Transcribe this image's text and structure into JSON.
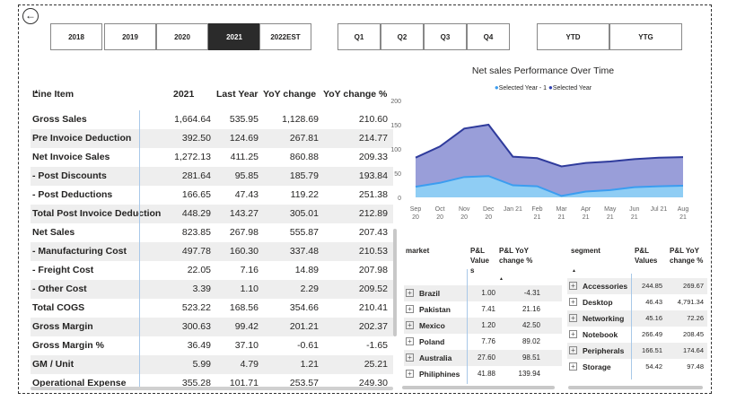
{
  "back_icon": "arrow-left-circle-icon",
  "slicers": {
    "years": [
      "2018",
      "2019",
      "2020",
      "2021",
      "2022EST"
    ],
    "selected_year": "2021",
    "quarters": [
      "Q1",
      "Q2",
      "Q3",
      "Q4"
    ],
    "periods": [
      "YTD",
      "YTG"
    ]
  },
  "pl_table": {
    "headers": [
      "Line Item",
      "2021",
      "Last Year",
      "YoY change",
      "YoY change %"
    ],
    "rows": [
      [
        "Gross Sales",
        "1,664.64",
        "535.95",
        "1,128.69",
        "210.60"
      ],
      [
        "Pre Invoice Deduction",
        "392.50",
        "124.69",
        "267.81",
        "214.77"
      ],
      [
        "Net Invoice Sales",
        "1,272.13",
        "411.25",
        "860.88",
        "209.33"
      ],
      [
        "- Post Discounts",
        "281.64",
        "95.85",
        "185.79",
        "193.84"
      ],
      [
        "- Post Deductions",
        "166.65",
        "47.43",
        "119.22",
        "251.38"
      ],
      [
        "Total Post Invoice Deduction",
        "448.29",
        "143.27",
        "305.01",
        "212.89"
      ],
      [
        "Net Sales",
        "823.85",
        "267.98",
        "555.87",
        "207.43"
      ],
      [
        "- Manufacturing Cost",
        "497.78",
        "160.30",
        "337.48",
        "210.53"
      ],
      [
        "- Freight Cost",
        "22.05",
        "7.16",
        "14.89",
        "207.98"
      ],
      [
        "- Other Cost",
        "3.39",
        "1.10",
        "2.29",
        "209.52"
      ],
      [
        "Total COGS",
        "523.22",
        "168.56",
        "354.66",
        "210.41"
      ],
      [
        "Gross Margin",
        "300.63",
        "99.42",
        "201.21",
        "202.37"
      ],
      [
        "Gross Margin %",
        "36.49",
        "37.10",
        "-0.61",
        "-1.65"
      ],
      [
        "GM / Unit",
        "5.99",
        "4.79",
        "1.21",
        "25.21"
      ],
      [
        "Operational Expense",
        "355.28",
        "101.71",
        "253.57",
        "249.30"
      ]
    ]
  },
  "chart_data": {
    "type": "area",
    "title": "Net sales Performance Over Time",
    "categories": [
      "Sep 20",
      "Oct 20",
      "Nov 20",
      "Dec 20",
      "Jan 21",
      "Feb 21",
      "Mar 21",
      "Apr 21",
      "May 21",
      "Jun 21",
      "Jul 21",
      "Aug 21"
    ],
    "category_labels": [
      [
        "Sep",
        "20"
      ],
      [
        "Oct",
        "20"
      ],
      [
        "Nov",
        "20"
      ],
      [
        "Dec",
        "20"
      ],
      [
        "Jan 21",
        ""
      ],
      [
        "Feb",
        "21"
      ],
      [
        "Mar",
        "21"
      ],
      [
        "Apr",
        "21"
      ],
      [
        "May",
        "21"
      ],
      [
        "Jun",
        "21"
      ],
      [
        "Jul 21",
        ""
      ],
      [
        "Aug",
        "21"
      ]
    ],
    "series": [
      {
        "name": "Selected Year - 1",
        "color": "#8ed0f5",
        "values": [
          22,
          30,
          42,
          44,
          25,
          23,
          3,
          12,
          15,
          21,
          23,
          24
        ]
      },
      {
        "name": "Selected Year",
        "color": "#7f86cf",
        "values": [
          82,
          105,
          142,
          150,
          84,
          81,
          64,
          71,
          74,
          79,
          82,
          83
        ]
      }
    ],
    "yticks": [
      0,
      50,
      100,
      150,
      200
    ],
    "ylim": [
      0,
      200
    ]
  },
  "market_table": {
    "headers": [
      "market",
      "P&L Value $",
      "P&L YoY change %"
    ],
    "header_lines": [
      [
        "market"
      ],
      [
        "P&L",
        "Value",
        "s"
      ],
      [
        "P&L YoY",
        "change %"
      ]
    ],
    "rows": [
      [
        "Brazil",
        "1.00",
        "-4.31"
      ],
      [
        "Pakistan",
        "7.41",
        "21.16"
      ],
      [
        "Mexico",
        "1.20",
        "42.50"
      ],
      [
        "Poland",
        "7.76",
        "89.02"
      ],
      [
        "Australia",
        "27.60",
        "98.51"
      ],
      [
        "Philiphines",
        "41.88",
        "139.94"
      ]
    ]
  },
  "segment_table": {
    "headers": [
      "segment",
      "P&L Values",
      "P&L YoY change %"
    ],
    "header_lines": [
      [
        "segment"
      ],
      [
        "P&L",
        "Values"
      ],
      [
        "P&L YoY",
        "change %"
      ]
    ],
    "rows": [
      [
        "Accessories",
        "244.85",
        "269.67"
      ],
      [
        "Desktop",
        "46.43",
        "4,791.34"
      ],
      [
        "Networking",
        "45.16",
        "72.26"
      ],
      [
        "Notebook",
        "266.49",
        "208.45"
      ],
      [
        "Peripherals",
        "166.51",
        "174.64"
      ],
      [
        "Storage",
        "54.42",
        "97.48"
      ]
    ]
  }
}
